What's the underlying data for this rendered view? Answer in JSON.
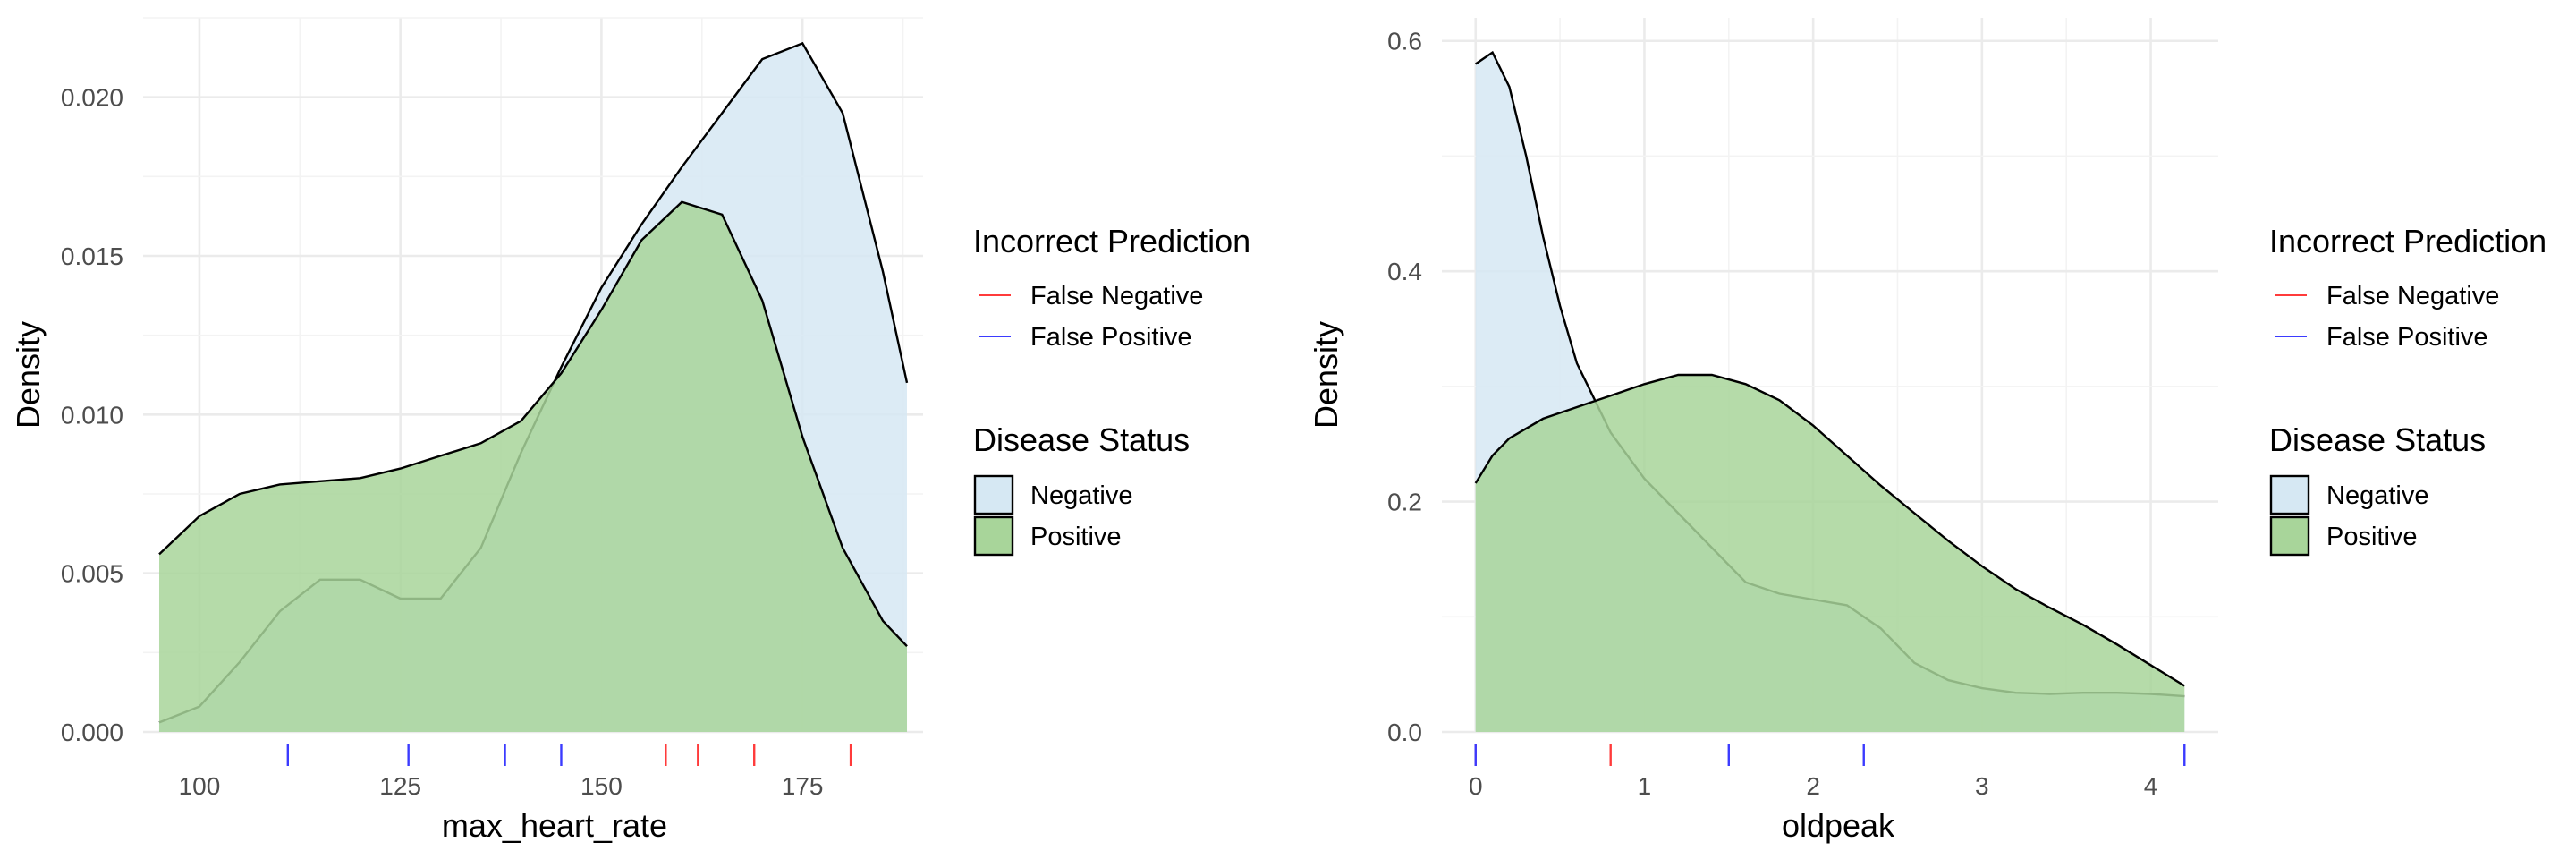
{
  "chart_data": [
    {
      "type": "area",
      "xlabel": "max_heart_rate",
      "ylabel": "Density",
      "xlim": [
        93,
        190
      ],
      "ylim": [
        0,
        0.0225
      ],
      "x_ticks": [
        100,
        125,
        150,
        175
      ],
      "y_ticks": [
        0.0,
        0.005,
        0.01,
        0.015,
        0.02
      ],
      "y_tick_labels": [
        "0.000",
        "0.005",
        "0.010",
        "0.015",
        "0.020"
      ],
      "grid": true,
      "series": [
        {
          "name": "Negative",
          "color": "#d6e8f3",
          "x": [
            95,
            100,
            105,
            110,
            115,
            120,
            125,
            130,
            135,
            140,
            145,
            150,
            155,
            160,
            165,
            170,
            175,
            180,
            185,
            188
          ],
          "y": [
            0.0003,
            0.0008,
            0.0022,
            0.0038,
            0.0048,
            0.0048,
            0.0042,
            0.0042,
            0.0058,
            0.0088,
            0.0115,
            0.014,
            0.016,
            0.0178,
            0.0195,
            0.0212,
            0.0217,
            0.0195,
            0.0145,
            0.011
          ]
        },
        {
          "name": "Positive",
          "color": "#a8d59a",
          "x": [
            95,
            100,
            105,
            110,
            115,
            120,
            125,
            130,
            135,
            140,
            145,
            150,
            155,
            160,
            165,
            170,
            175,
            180,
            185,
            188
          ],
          "y": [
            0.0056,
            0.0068,
            0.0075,
            0.0078,
            0.0079,
            0.008,
            0.0083,
            0.0087,
            0.0091,
            0.0098,
            0.0113,
            0.0133,
            0.0155,
            0.0167,
            0.0163,
            0.0136,
            0.0093,
            0.0058,
            0.0035,
            0.0027
          ]
        }
      ],
      "rug": [
        {
          "name": "False Negative",
          "color": "#ff3b3b",
          "x": [
            158,
            162,
            169,
            181
          ]
        },
        {
          "name": "False Positive",
          "color": "#3b3bff",
          "x": [
            111,
            126,
            138,
            145
          ]
        }
      ]
    },
    {
      "type": "area",
      "xlabel": "oldpeak",
      "ylabel": "Density",
      "xlim": [
        -0.2,
        4.4
      ],
      "ylim": [
        0,
        0.62
      ],
      "x_ticks": [
        0,
        1,
        2,
        3,
        4
      ],
      "y_ticks": [
        0.0,
        0.2,
        0.4,
        0.6
      ],
      "y_tick_labels": [
        "0.0",
        "0.2",
        "0.4",
        "0.6"
      ],
      "grid": true,
      "series": [
        {
          "name": "Negative",
          "color": "#d6e8f3",
          "x": [
            0,
            0.1,
            0.2,
            0.3,
            0.4,
            0.5,
            0.6,
            0.8,
            1.0,
            1.2,
            1.4,
            1.6,
            1.8,
            2.0,
            2.2,
            2.4,
            2.6,
            2.8,
            3.0,
            3.2,
            3.4,
            3.6,
            3.8,
            4.0,
            4.2
          ],
          "y": [
            0.58,
            0.59,
            0.56,
            0.5,
            0.43,
            0.37,
            0.32,
            0.26,
            0.22,
            0.19,
            0.16,
            0.13,
            0.12,
            0.115,
            0.11,
            0.09,
            0.06,
            0.045,
            0.038,
            0.034,
            0.033,
            0.034,
            0.034,
            0.033,
            0.031
          ]
        },
        {
          "name": "Positive",
          "color": "#a8d59a",
          "x": [
            0,
            0.1,
            0.2,
            0.4,
            0.6,
            0.8,
            1.0,
            1.2,
            1.4,
            1.6,
            1.8,
            2.0,
            2.2,
            2.4,
            2.6,
            2.8,
            3.0,
            3.2,
            3.4,
            3.6,
            3.8,
            4.0,
            4.2
          ],
          "y": [
            0.216,
            0.24,
            0.255,
            0.272,
            0.282,
            0.292,
            0.302,
            0.31,
            0.31,
            0.302,
            0.288,
            0.266,
            0.24,
            0.214,
            0.19,
            0.166,
            0.144,
            0.124,
            0.108,
            0.093,
            0.076,
            0.058,
            0.04
          ]
        }
      ],
      "rug": [
        {
          "name": "False Negative",
          "color": "#ff3b3b",
          "x": [
            0,
            0.8
          ]
        },
        {
          "name": "False Positive",
          "color": "#3b3bff",
          "x": [
            0,
            1.5,
            2.3,
            4.2
          ]
        }
      ]
    }
  ],
  "legends": [
    {
      "rug_title": "Incorrect Prediction",
      "rug_items": [
        {
          "label": "False Negative",
          "color": "#ff3b3b"
        },
        {
          "label": "False Positive",
          "color": "#3b3bff"
        }
      ],
      "fill_title": "Disease Status",
      "fill_items": [
        {
          "label": "Negative",
          "color": "#d6e8f3"
        },
        {
          "label": "Positive",
          "color": "#a8d59a"
        }
      ]
    },
    {
      "rug_title": "Incorrect Prediction",
      "rug_items": [
        {
          "label": "False Negative",
          "color": "#ff3b3b"
        },
        {
          "label": "False Positive",
          "color": "#3b3bff"
        }
      ],
      "fill_title": "Disease Status",
      "fill_items": [
        {
          "label": "Negative",
          "color": "#d6e8f3"
        },
        {
          "label": "Positive",
          "color": "#a8d59a"
        }
      ]
    }
  ]
}
